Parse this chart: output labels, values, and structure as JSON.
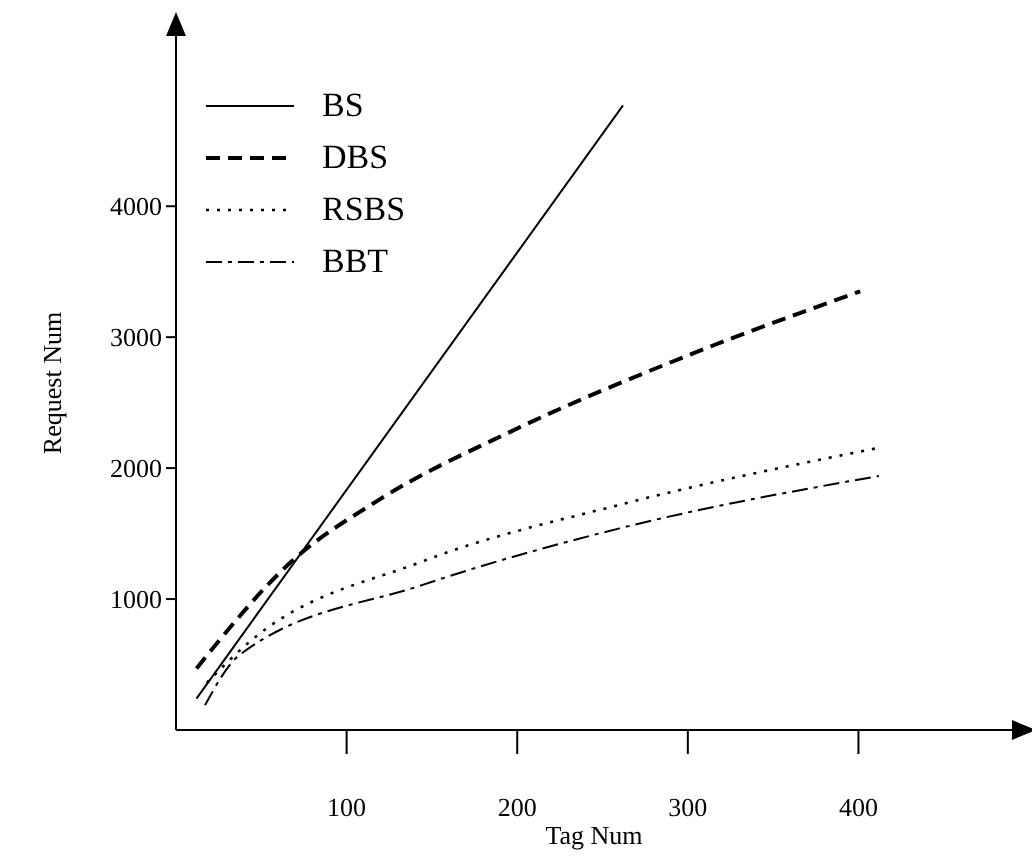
{
  "chart_data": {
    "type": "line",
    "xlabel": "Tag Num",
    "ylabel": "Request Num",
    "xlim": [
      0,
      490
    ],
    "ylim": [
      0,
      5300
    ],
    "xticks": [
      100,
      200,
      300,
      400
    ],
    "yticks": [
      1000,
      2000,
      3000,
      4000
    ],
    "grid": false,
    "legend": "top left",
    "marker": "none",
    "series": [
      {
        "name": "BS",
        "color": "#000000",
        "line_style": "solid",
        "x": [
          12,
          262
        ],
        "values": [
          240,
          4770
        ]
      },
      {
        "name": "DBS",
        "color": "#000000",
        "line_style": "dashed",
        "x": [
          12,
          68,
          118,
          198,
          298,
          401
        ],
        "values": [
          470,
          1290,
          1750,
          2290,
          2850,
          3350
        ]
      },
      {
        "name": "RSBS",
        "color": "#000000",
        "line_style": "dotted",
        "x": [
          18,
          41,
          145,
          260,
          410
        ],
        "values": [
          360,
          650,
          1290,
          1720,
          2150
        ]
      },
      {
        "name": "BBT",
        "color": "#000000",
        "line_style": "dashdot",
        "x": [
          17,
          37,
          145,
          260,
          412
        ],
        "values": [
          190,
          570,
          1110,
          1540,
          1940
        ]
      }
    ]
  }
}
